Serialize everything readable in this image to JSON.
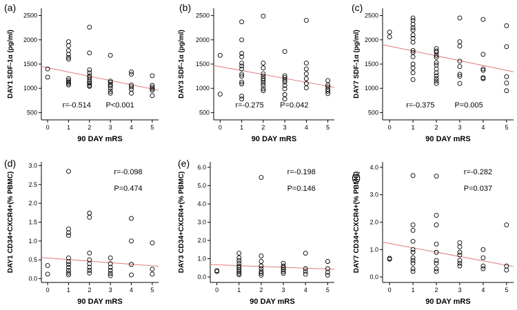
{
  "colors": {
    "regression": "#e07a7a",
    "axis": "#000000",
    "marker": "#000000",
    "frame": "#ffffff"
  },
  "chart_data": [
    {
      "type": "scatter",
      "panel": "(a)",
      "ylabel": "DAY1 SDF-1α (pg/ml)",
      "xlabel": "90 DAY mRS",
      "xlim": [
        -0.3,
        5.3
      ],
      "ylim": [
        350,
        2650
      ],
      "xticks": [
        "0",
        "1",
        "2",
        "3",
        "4",
        "5"
      ],
      "yticks": [
        500,
        1000,
        1500,
        2000,
        2500
      ],
      "ytick_labels": [
        "500",
        "1000",
        "1500",
        "2000",
        "2500"
      ],
      "annotation_r": "r=-0.514",
      "annotation_p": "P<0.001",
      "annotation_layout": "inline-bottom",
      "fit": {
        "x0": -0.3,
        "y0": 1450,
        "x1": 5.3,
        "y1": 960
      },
      "points": [
        [
          0,
          1400
        ],
        [
          0,
          1230
        ],
        [
          1,
          1960
        ],
        [
          1,
          1880
        ],
        [
          1,
          1780
        ],
        [
          1,
          1700
        ],
        [
          1,
          1640
        ],
        [
          1,
          1600
        ],
        [
          1,
          1200
        ],
        [
          1,
          1160
        ],
        [
          1,
          1130
        ],
        [
          1,
          1100
        ],
        [
          1,
          1070
        ],
        [
          2,
          2260
        ],
        [
          2,
          1730
        ],
        [
          2,
          1380
        ],
        [
          2,
          1320
        ],
        [
          2,
          1260
        ],
        [
          2,
          1220
        ],
        [
          2,
          1170
        ],
        [
          2,
          1130
        ],
        [
          2,
          1100
        ],
        [
          2,
          1060
        ],
        [
          2,
          1040
        ],
        [
          3,
          1680
        ],
        [
          3,
          1150
        ],
        [
          3,
          1120
        ],
        [
          3,
          1080
        ],
        [
          3,
          1050
        ],
        [
          3,
          1000
        ],
        [
          3,
          940
        ],
        [
          3,
          900
        ],
        [
          4,
          1340
        ],
        [
          4,
          1290
        ],
        [
          4,
          1070
        ],
        [
          4,
          1030
        ],
        [
          4,
          980
        ],
        [
          4,
          900
        ],
        [
          5,
          1260
        ],
        [
          5,
          1060
        ],
        [
          5,
          1020
        ],
        [
          5,
          990
        ],
        [
          5,
          960
        ],
        [
          5,
          850
        ]
      ]
    },
    {
      "type": "scatter",
      "panel": "(b)",
      "ylabel": "DAY3 SDF-1α (pg/ml)",
      "xlabel": "90 DAY mRS",
      "xlim": [
        -0.3,
        5.3
      ],
      "ylim": [
        350,
        2650
      ],
      "xticks": [
        "0",
        "1",
        "2",
        "3",
        "4",
        "5"
      ],
      "yticks": [
        500,
        1000,
        1500,
        2000,
        2500
      ],
      "ytick_labels": [
        "500",
        "1000",
        "1500",
        "2000",
        "2500"
      ],
      "annotation_r": "r=-0.275",
      "annotation_p": "P=0.042",
      "annotation_layout": "inline-bottom",
      "fit": {
        "x0": -0.3,
        "y0": 1470,
        "x1": 5.3,
        "y1": 1020
      },
      "points": [
        [
          0,
          1680
        ],
        [
          0,
          880
        ],
        [
          1,
          2370
        ],
        [
          1,
          2000
        ],
        [
          1,
          1720
        ],
        [
          1,
          1650
        ],
        [
          1,
          1520
        ],
        [
          1,
          1460
        ],
        [
          1,
          1400
        ],
        [
          1,
          1290
        ],
        [
          1,
          1250
        ],
        [
          1,
          1130
        ],
        [
          1,
          1090
        ],
        [
          1,
          840
        ],
        [
          1,
          780
        ],
        [
          2,
          2490
        ],
        [
          2,
          1520
        ],
        [
          2,
          1420
        ],
        [
          2,
          1300
        ],
        [
          2,
          1250
        ],
        [
          2,
          1200
        ],
        [
          2,
          1160
        ],
        [
          2,
          1110
        ],
        [
          2,
          1060
        ],
        [
          2,
          990
        ],
        [
          2,
          950
        ],
        [
          3,
          1760
        ],
        [
          3,
          1260
        ],
        [
          3,
          1220
        ],
        [
          3,
          1170
        ],
        [
          3,
          1130
        ],
        [
          3,
          1060
        ],
        [
          3,
          990
        ],
        [
          3,
          870
        ],
        [
          3,
          780
        ],
        [
          4,
          2400
        ],
        [
          4,
          1520
        ],
        [
          4,
          1400
        ],
        [
          4,
          1300
        ],
        [
          4,
          1200
        ],
        [
          4,
          1100
        ],
        [
          4,
          1010
        ],
        [
          5,
          1160
        ],
        [
          5,
          1070
        ],
        [
          5,
          1030
        ],
        [
          5,
          980
        ],
        [
          5,
          940
        ],
        [
          5,
          890
        ]
      ]
    },
    {
      "type": "scatter",
      "panel": "(c)",
      "ylabel": "DAY7 SDF-1α (pg/ml)",
      "xlabel": "90 DAY mRS",
      "xlim": [
        -0.3,
        5.3
      ],
      "ylim": [
        350,
        2650
      ],
      "xticks": [
        "0",
        "1",
        "2",
        "3",
        "4",
        "5"
      ],
      "yticks": [
        500,
        1000,
        1500,
        2000,
        2500
      ],
      "ytick_labels": [
        "500",
        "1000",
        "1500",
        "2000",
        "2500"
      ],
      "annotation_r": "r=-0.375",
      "annotation_p": "P=0.005",
      "annotation_layout": "inline-bottom",
      "fit": {
        "x0": -0.3,
        "y0": 1900,
        "x1": 5.3,
        "y1": 1340
      },
      "points": [
        [
          0,
          2160
        ],
        [
          0,
          2060
        ],
        [
          1,
          2450
        ],
        [
          1,
          2400
        ],
        [
          1,
          2320
        ],
        [
          1,
          2250
        ],
        [
          1,
          2200
        ],
        [
          1,
          2100
        ],
        [
          1,
          2030
        ],
        [
          1,
          1950
        ],
        [
          1,
          1780
        ],
        [
          1,
          1740
        ],
        [
          1,
          1650
        ],
        [
          1,
          1500
        ],
        [
          1,
          1420
        ],
        [
          1,
          1320
        ],
        [
          1,
          1180
        ],
        [
          2,
          1820
        ],
        [
          2,
          1770
        ],
        [
          2,
          1740
        ],
        [
          2,
          1680
        ],
        [
          2,
          1640
        ],
        [
          2,
          1530
        ],
        [
          2,
          1480
        ],
        [
          2,
          1400
        ],
        [
          2,
          1320
        ],
        [
          2,
          1260
        ],
        [
          2,
          1200
        ],
        [
          2,
          1150
        ],
        [
          2,
          1100
        ],
        [
          3,
          2450
        ],
        [
          3,
          1960
        ],
        [
          3,
          1870
        ],
        [
          3,
          1560
        ],
        [
          3,
          1450
        ],
        [
          3,
          1290
        ],
        [
          3,
          1250
        ],
        [
          3,
          1100
        ],
        [
          4,
          2420
        ],
        [
          4,
          1700
        ],
        [
          4,
          1400
        ],
        [
          4,
          1370
        ],
        [
          4,
          1220
        ],
        [
          4,
          1200
        ],
        [
          5,
          2290
        ],
        [
          5,
          1860
        ],
        [
          5,
          1240
        ],
        [
          5,
          1110
        ],
        [
          5,
          950
        ]
      ]
    },
    {
      "type": "scatter",
      "panel": "(d)",
      "ylabel": "DAY1 CD34+CXCR4+(% PBMC)",
      "xlabel": "90 DAY mRS",
      "xlim": [
        -0.3,
        5.3
      ],
      "ylim": [
        -0.1,
        3.1
      ],
      "xticks": [
        "0",
        "1",
        "2",
        "3",
        "4",
        "5"
      ],
      "yticks": [
        0,
        0.5,
        1,
        1.5,
        2,
        2.5,
        3
      ],
      "ytick_labels": [
        "0.0",
        "0.5",
        "1.0",
        "1.5",
        "2.0",
        "2.5",
        "3.0"
      ],
      "annotation_r": "r=-0.098",
      "annotation_p": "P=0.474",
      "annotation_layout": "stacked-top",
      "fit": {
        "x0": -0.3,
        "y0": 0.56,
        "x1": 5.3,
        "y1": 0.33
      },
      "points": [
        [
          0,
          0.35
        ],
        [
          0,
          0.12
        ],
        [
          1,
          2.85
        ],
        [
          1,
          1.32
        ],
        [
          1,
          1.22
        ],
        [
          1,
          1.15
        ],
        [
          1,
          0.55
        ],
        [
          1,
          0.45
        ],
        [
          1,
          0.38
        ],
        [
          1,
          0.3
        ],
        [
          1,
          0.22
        ],
        [
          1,
          0.15
        ],
        [
          1,
          0.1
        ],
        [
          2,
          1.74
        ],
        [
          2,
          1.63
        ],
        [
          2,
          0.68
        ],
        [
          2,
          0.5
        ],
        [
          2,
          0.4
        ],
        [
          2,
          0.3
        ],
        [
          2,
          0.22
        ],
        [
          2,
          0.15
        ],
        [
          3,
          0.55
        ],
        [
          3,
          0.4
        ],
        [
          3,
          0.3
        ],
        [
          3,
          0.22
        ],
        [
          3,
          0.14
        ],
        [
          3,
          0.08
        ],
        [
          4,
          1.6
        ],
        [
          4,
          1.0
        ],
        [
          4,
          0.38
        ],
        [
          4,
          0.1
        ],
        [
          5,
          0.95
        ],
        [
          5,
          0.25
        ],
        [
          5,
          0.12
        ]
      ]
    },
    {
      "type": "scatter",
      "panel": "(e)",
      "ylabel": "DAY3 CD34+CXCR4+(% PBMC)",
      "xlabel": "90 DAY mRS",
      "xlim": [
        -0.3,
        5.3
      ],
      "ylim": [
        -0.3,
        6.3
      ],
      "xticks": [
        "0",
        "1",
        "2",
        "3",
        "4",
        "5"
      ],
      "yticks": [
        0,
        1,
        2,
        3,
        4,
        5,
        6
      ],
      "ytick_labels": [
        "0.0",
        "1.0",
        "2.0",
        "3.0",
        "4.0",
        "5.0",
        "6.0"
      ],
      "annotation_r": "r=-0.198",
      "annotation_p": "P=0.146",
      "annotation_layout": "stacked-top",
      "fit": {
        "x0": -0.3,
        "y0": 0.68,
        "x1": 5.3,
        "y1": 0.42
      },
      "points": [
        [
          0,
          0.35
        ],
        [
          0,
          0.3
        ],
        [
          1,
          1.3
        ],
        [
          1,
          1.05
        ],
        [
          1,
          0.9
        ],
        [
          1,
          0.75
        ],
        [
          1,
          0.6
        ],
        [
          1,
          0.5
        ],
        [
          1,
          0.4
        ],
        [
          1,
          0.3
        ],
        [
          1,
          0.2
        ],
        [
          1,
          0.12
        ],
        [
          2,
          5.45
        ],
        [
          2,
          1.15
        ],
        [
          2,
          0.85
        ],
        [
          2,
          0.6
        ],
        [
          2,
          0.45
        ],
        [
          2,
          0.3
        ],
        [
          2,
          0.2
        ],
        [
          2,
          0.1
        ],
        [
          3,
          0.75
        ],
        [
          3,
          0.6
        ],
        [
          3,
          0.5
        ],
        [
          3,
          0.4
        ],
        [
          3,
          0.3
        ],
        [
          3,
          0.2
        ],
        [
          4,
          1.3
        ],
        [
          4,
          0.45
        ],
        [
          4,
          0.3
        ],
        [
          4,
          0.15
        ],
        [
          5,
          0.85
        ],
        [
          5,
          0.45
        ],
        [
          5,
          0.25
        ],
        [
          5,
          0.1
        ]
      ]
    },
    {
      "type": "scatter",
      "panel": "(f)",
      "ylabel": "DAY7 CD34+CXCR4+(% PBMC)",
      "xlabel": "90 DAY mRS",
      "xlim": [
        -0.3,
        5.3
      ],
      "ylim": [
        -0.2,
        4.2
      ],
      "xticks": [
        "0",
        "1",
        "2",
        "3",
        "4",
        "5"
      ],
      "yticks": [
        0,
        1,
        2,
        3,
        4
      ],
      "ytick_labels": [
        "0.0",
        "1.0",
        "2.0",
        "3.0",
        "4.0"
      ],
      "annotation_r": "r=-0.282",
      "annotation_p": "P=0.037",
      "annotation_layout": "stacked-top",
      "fit": {
        "x0": -0.3,
        "y0": 1.27,
        "x1": 5.3,
        "y1": 0.38
      },
      "points": [
        [
          0,
          0.68
        ],
        [
          0,
          0.65
        ],
        [
          1,
          3.7
        ],
        [
          1,
          1.9
        ],
        [
          1,
          1.7
        ],
        [
          1,
          1.3
        ],
        [
          1,
          1.0
        ],
        [
          1,
          0.9
        ],
        [
          1,
          0.7
        ],
        [
          1,
          0.6
        ],
        [
          1,
          0.5
        ],
        [
          1,
          0.3
        ],
        [
          1,
          0.2
        ],
        [
          2,
          3.68
        ],
        [
          2,
          2.25
        ],
        [
          2,
          1.9
        ],
        [
          2,
          1.2
        ],
        [
          2,
          0.9
        ],
        [
          2,
          0.6
        ],
        [
          2,
          0.5
        ],
        [
          2,
          0.3
        ],
        [
          2,
          0.2
        ],
        [
          3,
          1.25
        ],
        [
          3,
          1.1
        ],
        [
          3,
          0.9
        ],
        [
          3,
          0.8
        ],
        [
          3,
          0.6
        ],
        [
          3,
          0.5
        ],
        [
          3,
          0.4
        ],
        [
          4,
          1.0
        ],
        [
          4,
          0.7
        ],
        [
          4,
          0.4
        ],
        [
          4,
          0.3
        ],
        [
          5,
          1.9
        ],
        [
          5,
          0.4
        ],
        [
          5,
          0.25
        ]
      ]
    }
  ]
}
